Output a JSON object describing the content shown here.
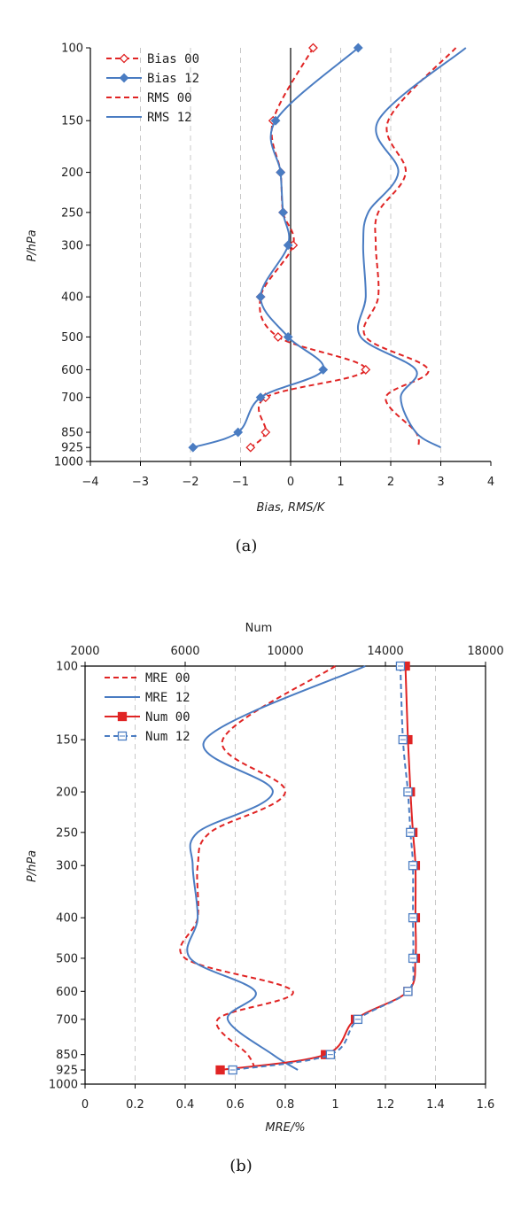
{
  "chart_data": [
    {
      "type": "line",
      "panel_label": "(a)",
      "xlabel": "Bias, RMS/K",
      "ylabel": "P/hPa",
      "xlim": [
        -4,
        4
      ],
      "x_ticks": [
        "−4",
        "−3",
        "−2",
        "−1",
        "0",
        "1",
        "2",
        "3",
        "4"
      ],
      "y_ticks": [
        "100",
        "150",
        "200",
        "250",
        "300",
        "400",
        "500",
        "600",
        "700",
        "850",
        "925",
        "1000"
      ],
      "y_scale": "log (pressure)",
      "grid": "vertical dashed",
      "legend_position": "top-left",
      "colors": {
        "00": "#e02424",
        "12": "#4a7cc2"
      },
      "levels": [
        100,
        150,
        200,
        250,
        300,
        400,
        500,
        600,
        700,
        850,
        925
      ],
      "series": [
        {
          "name": "Bias 00",
          "style": "dashed",
          "marker": "open-diamond",
          "values": [
            0.45,
            -0.35,
            -0.2,
            -0.15,
            0.05,
            -0.6,
            -0.25,
            1.5,
            -0.5,
            -0.5,
            -0.8
          ]
        },
        {
          "name": "Bias 12",
          "style": "solid",
          "marker": "filled-diamond",
          "values": [
            1.35,
            -0.3,
            -0.2,
            -0.15,
            -0.05,
            -0.6,
            -0.05,
            0.65,
            -0.6,
            -1.05,
            -1.95
          ]
        },
        {
          "name": "RMS 00",
          "style": "dashed",
          "marker": "none",
          "values": [
            3.3,
            1.95,
            2.3,
            1.75,
            1.7,
            1.75,
            1.5,
            2.75,
            1.9,
            2.5,
            2.55
          ]
        },
        {
          "name": "RMS 12",
          "style": "solid",
          "marker": "none",
          "values": [
            3.5,
            1.75,
            2.15,
            1.55,
            1.45,
            1.5,
            1.4,
            2.5,
            2.2,
            2.5,
            3.0
          ]
        }
      ]
    },
    {
      "type": "line",
      "panel_label": "(b)",
      "xlabel": "MRE/%",
      "x2label": "Num",
      "ylabel": "P/hPa",
      "xlim": [
        0,
        1.6
      ],
      "x2lim": [
        2000,
        18000
      ],
      "x_ticks": [
        "0",
        "0.2",
        "0.4",
        "0.6",
        "0.8",
        "1",
        "1.2",
        "1.4",
        "1.6"
      ],
      "x2_ticks": [
        "2000",
        "6000",
        "10000",
        "14000",
        "18000"
      ],
      "y_ticks": [
        "100",
        "150",
        "200",
        "250",
        "300",
        "400",
        "500",
        "600",
        "700",
        "850",
        "925",
        "1000"
      ],
      "y_scale": "log (pressure)",
      "grid": "vertical dashed",
      "legend_position": "top-left",
      "colors": {
        "00": "#e02424",
        "12": "#4a7cc2"
      },
      "levels": [
        100,
        150,
        200,
        250,
        300,
        400,
        500,
        600,
        700,
        850,
        925
      ],
      "series": [
        {
          "name": "MRE 00",
          "axis": "bottom",
          "style": "dashed",
          "marker": "none",
          "values": [
            1.0,
            0.55,
            0.8,
            0.5,
            0.45,
            0.45,
            0.4,
            0.83,
            0.53,
            0.65,
            0.68
          ]
        },
        {
          "name": "MRE 12",
          "axis": "bottom",
          "style": "solid",
          "marker": "none",
          "values": [
            1.12,
            0.48,
            0.75,
            0.45,
            0.43,
            0.45,
            0.42,
            0.68,
            0.57,
            0.75,
            0.85
          ]
        },
        {
          "name": "Num 00",
          "axis": "top",
          "style": "solid",
          "marker": "filled-square",
          "values": [
            14800,
            14900,
            15000,
            15100,
            15200,
            15200,
            15200,
            14900,
            12800,
            11600,
            7400
          ]
        },
        {
          "name": "Num 12",
          "axis": "top",
          "style": "dashed",
          "marker": "open-square",
          "values": [
            14600,
            14700,
            14900,
            15000,
            15100,
            15100,
            15100,
            14900,
            12900,
            11800,
            7900
          ]
        }
      ]
    }
  ]
}
